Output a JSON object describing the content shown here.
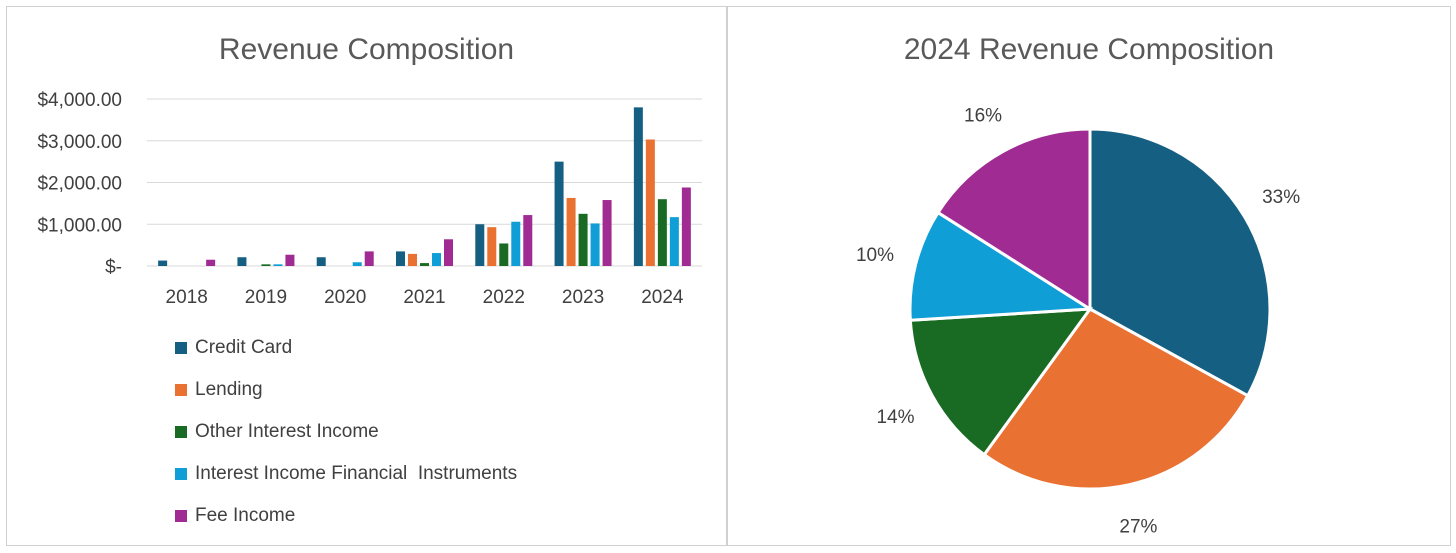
{
  "chart_data": [
    {
      "type": "bar",
      "title": "Revenue Composition",
      "categories": [
        "2018",
        "2019",
        "2020",
        "2021",
        "2022",
        "2023",
        "2024"
      ],
      "series": [
        {
          "name": "Credit Card",
          "color": "#156082",
          "values": [
            130,
            210,
            210,
            350,
            1000,
            2500,
            3800
          ]
        },
        {
          "name": "Lending",
          "color": "#E97132",
          "values": [
            0,
            0,
            0,
            290,
            930,
            1630,
            3030
          ]
        },
        {
          "name": "Other Interest Income",
          "color": "#196B24",
          "values": [
            0,
            40,
            0,
            70,
            540,
            1250,
            1600
          ]
        },
        {
          "name": "Interest Income Financial  Instruments",
          "color": "#0F9ED5",
          "values": [
            0,
            40,
            90,
            310,
            1060,
            1020,
            1170
          ]
        },
        {
          "name": "Fee Income",
          "color": "#A02B93",
          "values": [
            150,
            270,
            350,
            640,
            1220,
            1580,
            1880
          ]
        }
      ],
      "yticks": [
        {
          "value": 0,
          "label": "$-"
        },
        {
          "value": 1000,
          "label": "$1,000.00"
        },
        {
          "value": 2000,
          "label": "$2,000.00"
        },
        {
          "value": 3000,
          "label": "$3,000.00"
        },
        {
          "value": 4000,
          "label": "$4,000.00"
        }
      ],
      "ylim": [
        0,
        4000
      ],
      "grid": true,
      "legend": "bottom-left"
    },
    {
      "type": "pie",
      "title": "2024 Revenue Composition",
      "slices": [
        {
          "name": "Credit Card",
          "value": 33,
          "label": "33%",
          "color": "#156082"
        },
        {
          "name": "Lending",
          "value": 27,
          "label": "27%",
          "color": "#E97132"
        },
        {
          "name": "Other Interest Income",
          "value": 14,
          "label": "14%",
          "color": "#196B24"
        },
        {
          "name": "Interest Income Financial  Instruments",
          "value": 10,
          "label": "10%",
          "color": "#0F9ED5"
        },
        {
          "name": "Fee Income",
          "value": 16,
          "label": "16%",
          "color": "#A02B93"
        }
      ]
    }
  ]
}
